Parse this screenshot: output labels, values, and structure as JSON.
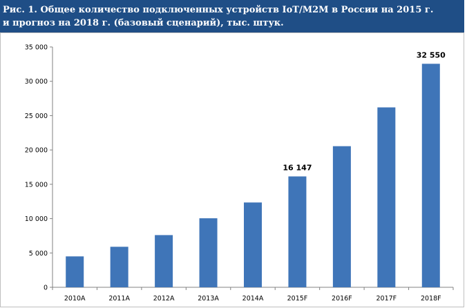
{
  "header": {
    "title_line1": "Рис. 1. Общее количество подключенных устройств IoT/M2M в России на 2015 г.",
    "title_line2": "и прогноз на 2018 г. (базовый сценарий), тыс. штук."
  },
  "colors": {
    "title_background": "#1f4e86",
    "title_text": "#ffffff",
    "bar": "#3f75b8",
    "axis": "#808080"
  },
  "chart_data": {
    "type": "bar",
    "title": "Рис. 1. Общее количество подключенных устройств IoT/M2M в России на 2015 г. и прогноз на 2018 г. (базовый сценарий), тыс. штук.",
    "categories": [
      "2010A",
      "2011A",
      "2012A",
      "2013A",
      "2014A",
      "2015F",
      "2016F",
      "2017F",
      "2018F"
    ],
    "values": [
      4500,
      5900,
      7600,
      10050,
      12350,
      16147,
      20550,
      26200,
      32550
    ],
    "data_labels": [
      {
        "index": 5,
        "text": "16 147"
      },
      {
        "index": 8,
        "text": "32 550"
      }
    ],
    "yticks": [
      "0",
      "5 000",
      "10 000",
      "15 000",
      "20 000",
      "25 000",
      "30 000",
      "35 000"
    ],
    "ytick_values": [
      0,
      5000,
      10000,
      15000,
      20000,
      25000,
      30000,
      35000
    ],
    "ylim": [
      0,
      35000
    ],
    "xlabel": "",
    "ylabel": "",
    "grid": false,
    "legend": "none"
  }
}
